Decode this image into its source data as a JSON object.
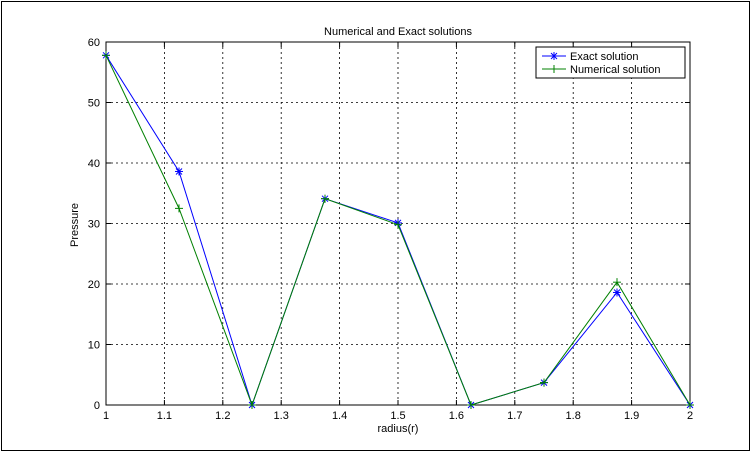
{
  "chart_data": {
    "type": "line",
    "title": "Numerical and Exact solutions",
    "xlabel": "radius(r)",
    "ylabel": "Pressure",
    "xlim": [
      1,
      2
    ],
    "ylim": [
      0,
      60
    ],
    "x_ticks": [
      "1",
      "1.1",
      "1.2",
      "1.3",
      "1.4",
      "1.5",
      "1.6",
      "1.7",
      "1.8",
      "1.9",
      "2"
    ],
    "y_ticks": [
      "0",
      "10",
      "20",
      "30",
      "40",
      "50",
      "60"
    ],
    "grid": true,
    "legend_position": "top-right",
    "x": [
      1,
      1.125,
      1.25,
      1.375,
      1.5,
      1.625,
      1.75,
      1.875,
      2
    ],
    "series": [
      {
        "name": "Exact solution",
        "marker": "asterisk",
        "color": "#0000ff",
        "values": [
          57.8,
          38.6,
          0,
          34.1,
          30.1,
          0,
          3.7,
          18.6,
          0
        ]
      },
      {
        "name": "Numerical solution",
        "marker": "plus",
        "color": "#008000",
        "values": [
          57.8,
          32.5,
          0,
          34.1,
          29.8,
          0,
          3.7,
          20.3,
          0
        ]
      }
    ]
  }
}
